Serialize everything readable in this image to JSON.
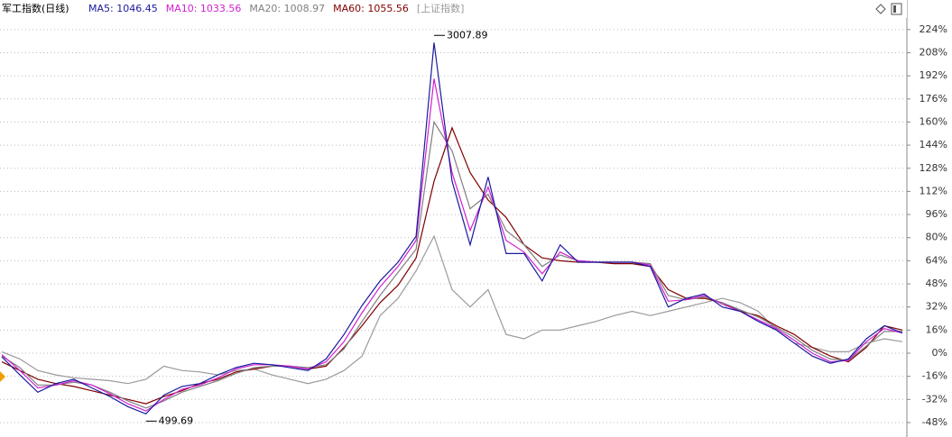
{
  "chart_data": {
    "type": "line",
    "title": "军工指数(日线)",
    "ylim": [
      -58,
      232
    ],
    "yticks": [
      {
        "value": 224,
        "label": "224%"
      },
      {
        "value": 208,
        "label": "208%"
      },
      {
        "value": 192,
        "label": "192%"
      },
      {
        "value": 176,
        "label": "176%"
      },
      {
        "value": 160,
        "label": "160%"
      },
      {
        "value": 144,
        "label": "144%"
      },
      {
        "value": 128,
        "label": "128%"
      },
      {
        "value": 112,
        "label": "112%"
      },
      {
        "value": 96,
        "label": "96%"
      },
      {
        "value": 80,
        "label": "80%"
      },
      {
        "value": 64,
        "label": "64%"
      },
      {
        "value": 48,
        "label": "48%"
      },
      {
        "value": 32,
        "label": "32%"
      },
      {
        "value": 16,
        "label": "16%"
      },
      {
        "value": 0,
        "label": "0%"
      },
      {
        "value": -16,
        "label": "-16%"
      },
      {
        "value": -32,
        "label": "-32%"
      },
      {
        "value": -48,
        "label": "-48%"
      }
    ],
    "grid": true,
    "series": [
      {
        "name": "[上证指数]",
        "color": "#9a9a9a",
        "values": [
          1,
          -4,
          -12,
          -15,
          -17,
          -18,
          -19,
          -21,
          -18,
          -9,
          -12,
          -13,
          -15,
          -12,
          -11,
          -15,
          -18,
          -21,
          -18,
          -12,
          -2,
          26,
          38,
          57,
          81,
          44,
          32,
          44,
          13,
          10,
          16,
          16,
          19,
          22,
          26,
          29,
          26,
          29,
          32,
          35,
          38,
          35,
          29,
          16,
          7,
          4,
          1,
          1,
          7,
          10,
          8
        ]
      },
      {
        "name": "MA60: 1055.56",
        "color": "#800000",
        "values": [
          -6,
          -12,
          -18,
          -21,
          -23,
          -26,
          -29,
          -32,
          -35,
          -30,
          -26,
          -21,
          -18,
          -13,
          -11,
          -9,
          -9,
          -11,
          -9,
          4,
          19,
          35,
          47,
          66,
          119,
          156,
          125,
          106,
          94,
          75,
          66,
          64,
          63,
          63,
          62,
          62,
          60,
          44,
          38,
          38,
          35,
          29,
          26,
          19,
          13,
          4,
          -2,
          -6,
          4,
          19,
          16
        ]
      },
      {
        "name": "MA20: 1008.97",
        "color": "#808080",
        "values": [
          -2,
          -10,
          -22,
          -22,
          -20,
          -22,
          -27,
          -33,
          -38,
          -33,
          -27,
          -23,
          -19,
          -14,
          -10,
          -9,
          -9,
          -10,
          -8,
          3,
          22,
          40,
          56,
          72,
          160,
          140,
          100,
          110,
          85,
          75,
          60,
          68,
          64,
          63,
          63,
          63,
          62,
          40,
          37,
          39,
          35,
          30,
          25,
          18,
          11,
          2,
          -4,
          -5,
          5,
          15,
          15
        ]
      },
      {
        "name": "MA10: 1033.56",
        "color": "#d020d0",
        "values": [
          -1,
          -12,
          -24,
          -22,
          -19,
          -22,
          -28,
          -35,
          -40,
          -32,
          -25,
          -22,
          -17,
          -11,
          -8,
          -8,
          -9,
          -11,
          -6,
          8,
          28,
          46,
          60,
          78,
          190,
          125,
          85,
          115,
          78,
          70,
          55,
          70,
          64,
          63,
          63,
          63,
          61,
          36,
          37,
          40,
          34,
          29,
          23,
          17,
          9,
          0,
          -6,
          -5,
          8,
          17,
          14
        ]
      },
      {
        "name": "MA5: 1046.45",
        "color": "#1a1aa0",
        "values": [
          -2.5,
          -15,
          -27,
          -21,
          -18,
          -24,
          -30,
          -37,
          -42,
          -29,
          -23,
          -21,
          -15,
          -10,
          -7,
          -8,
          -10,
          -12,
          -4,
          13,
          33,
          50,
          63,
          81,
          215,
          119,
          75,
          122,
          69,
          69,
          50,
          75,
          63,
          63,
          63,
          63,
          60,
          32,
          38,
          41,
          32,
          29,
          22,
          16,
          7,
          -2,
          -7,
          -4,
          10,
          19,
          14
        ]
      }
    ],
    "annotations": [
      "3007.89",
      "499.69"
    ]
  }
}
